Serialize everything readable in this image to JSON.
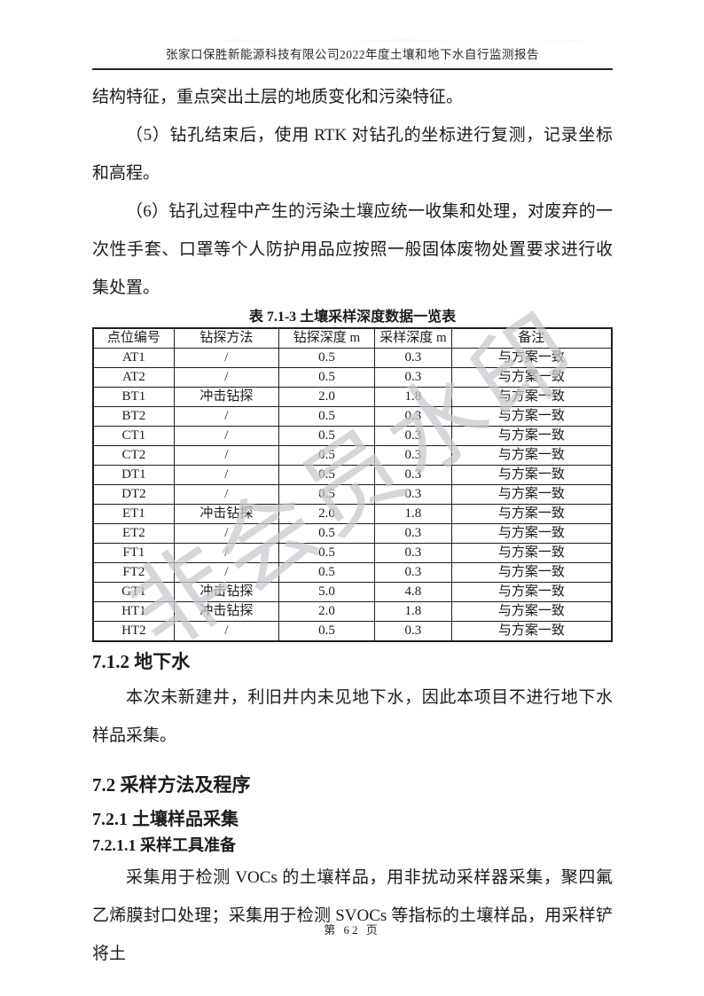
{
  "header": {
    "title": "张家口保胜新能源科技有限公司2022年度土壤和地下水自行监测报告"
  },
  "paragraphs": {
    "continuation": "结构特征，重点突出土层的地质变化和污染特征。",
    "item5": "（5）钻孔结束后，使用 RTK 对钻孔的坐标进行复测，记录坐标和高程。",
    "item6": "（6）钻孔过程中产生的污染土壤应统一收集和处理，对废弃的一次性手套、口罩等个人防护用品应按照一般固体废物处置要求进行收集处置。",
    "groundwater": "本次未新建井，利旧井内未见地下水，因此本项目不进行地下水样品采集。",
    "tools": "采集用于检测 VOCs 的土壤样品，用非扰动采样器采集，聚四氟乙烯膜封口处理；采集用于检测 SVOCs 等指标的土壤样品，用采样铲将土"
  },
  "table": {
    "title": "表 7.1-3 土壤采样深度数据一览表",
    "headers": [
      "点位编号",
      "钻探方法",
      "钻探深度 m",
      "采样深度 m",
      "备注"
    ],
    "rows": [
      [
        "AT1",
        "/",
        "0.5",
        "0.3",
        "与方案一致"
      ],
      [
        "AT2",
        "/",
        "0.5",
        "0.3",
        "与方案一致"
      ],
      [
        "BT1",
        "冲击钻探",
        "2.0",
        "1.8",
        "与方案一致"
      ],
      [
        "BT2",
        "/",
        "0.5",
        "0.3",
        "与方案一致"
      ],
      [
        "CT1",
        "/",
        "0.5",
        "0.3",
        "与方案一致"
      ],
      [
        "CT2",
        "/",
        "0.5",
        "0.3",
        "与方案一致"
      ],
      [
        "DT1",
        "/",
        "0.5",
        "0.3",
        "与方案一致"
      ],
      [
        "DT2",
        "/",
        "0.5",
        "0.3",
        "与方案一致"
      ],
      [
        "ET1",
        "冲击钻探",
        "2.0",
        "1.8",
        "与方案一致"
      ],
      [
        "ET2",
        "/",
        "0.5",
        "0.3",
        "与方案一致"
      ],
      [
        "FT1",
        "/",
        "0.5",
        "0.3",
        "与方案一致"
      ],
      [
        "FT2",
        "/",
        "0.5",
        "0.3",
        "与方案一致"
      ],
      [
        "GT1",
        "冲击钻探",
        "5.0",
        "4.8",
        "与方案一致"
      ],
      [
        "HT1",
        "冲击钻探",
        "2.0",
        "1.8",
        "与方案一致"
      ],
      [
        "HT2",
        "/",
        "0.5",
        "0.3",
        "与方案一致"
      ]
    ]
  },
  "sections": {
    "s712": "7.1.2 地下水",
    "s72": "7.2 采样方法及程序",
    "s721": "7.2.1 土壤样品采集",
    "s7211": "7.2.1.1 采样工具准备"
  },
  "footer": {
    "page_label": "第 62 页"
  },
  "watermark": {
    "text": "非会员水印",
    "color": "#c6c9cc"
  },
  "colors": {
    "text": "#1b1b1b",
    "table_border": "#1d1d1d"
  }
}
